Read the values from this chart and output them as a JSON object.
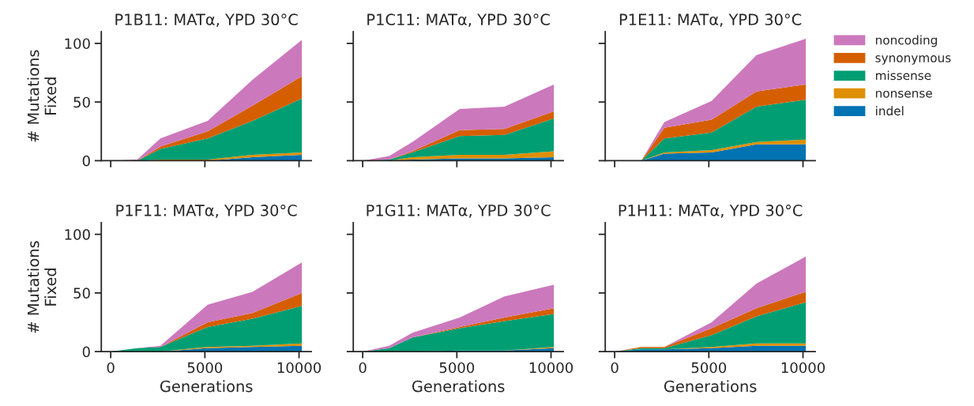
{
  "chart_data": [
    {
      "type": "area",
      "stacked": true,
      "title": "P1B11: MATα, YPD 30°C",
      "ylabel": "# Mutations\nFixed",
      "x": [
        0,
        1410,
        2640,
        5150,
        7530,
        10150
      ],
      "xlim": [
        -500,
        10650
      ],
      "ylim": [
        0,
        110
      ],
      "yticks": [
        0,
        50,
        100
      ],
      "xticks": [
        0,
        5000,
        10000
      ],
      "tick_labels": "y",
      "legend": "right",
      "series": [
        {
          "name": "indel",
          "color": "#0173b2",
          "values": [
            0,
            0,
            0,
            0,
            3,
            5
          ]
        },
        {
          "name": "nonsense",
          "color": "#de8f05",
          "values": [
            0,
            0,
            1,
            1,
            2,
            2
          ]
        },
        {
          "name": "missense",
          "color": "#029e73",
          "values": [
            0,
            0,
            9,
            18,
            29,
            46
          ]
        },
        {
          "name": "synonymous",
          "color": "#d55e00",
          "values": [
            0,
            0,
            2,
            6,
            13,
            19
          ]
        },
        {
          "name": "noncoding",
          "color": "#cc78bc",
          "values": [
            0,
            1,
            7,
            9,
            22,
            31
          ]
        }
      ]
    },
    {
      "type": "area",
      "stacked": true,
      "title": "P1C11: MATα, YPD 30°C",
      "x": [
        0,
        1410,
        2640,
        5150,
        7530,
        10150
      ],
      "xlim": [
        -500,
        10650
      ],
      "ylim": [
        0,
        110
      ],
      "yticks": [
        0,
        50,
        100
      ],
      "xticks": [
        0,
        5000,
        10000
      ],
      "tick_labels": false,
      "series": [
        {
          "color": "#0173b2",
          "values": [
            0,
            0,
            1,
            2,
            2,
            3
          ]
        },
        {
          "color": "#de8f05",
          "values": [
            0,
            0,
            2,
            3,
            3,
            5
          ]
        },
        {
          "color": "#029e73",
          "values": [
            0,
            1,
            4,
            16,
            17,
            28
          ]
        },
        {
          "color": "#d55e00",
          "values": [
            0,
            0,
            1,
            5,
            5,
            6
          ]
        },
        {
          "color": "#cc78bc",
          "values": [
            0,
            3,
            8,
            18,
            19,
            23
          ]
        }
      ]
    },
    {
      "type": "area",
      "stacked": true,
      "title": "P1E11: MATα, YPD 30°C",
      "x": [
        0,
        1410,
        2640,
        5150,
        7530,
        10150
      ],
      "xlim": [
        -500,
        10650
      ],
      "ylim": [
        0,
        110
      ],
      "yticks": [
        0,
        50,
        100
      ],
      "xticks": [
        0,
        5000,
        10000
      ],
      "tick_labels": false,
      "series": [
        {
          "color": "#0173b2",
          "values": [
            0,
            0,
            6,
            7,
            14,
            14
          ]
        },
        {
          "color": "#de8f05",
          "values": [
            0,
            0,
            1,
            2,
            2,
            4
          ]
        },
        {
          "color": "#029e73",
          "values": [
            0,
            0,
            12,
            15,
            30,
            34
          ]
        },
        {
          "color": "#d55e00",
          "values": [
            0,
            0,
            9,
            11,
            13,
            13
          ]
        },
        {
          "color": "#cc78bc",
          "values": [
            0,
            0,
            5,
            16,
            31,
            39
          ]
        }
      ]
    },
    {
      "type": "area",
      "stacked": true,
      "title": "P1F11: MATα, YPD 30°C",
      "xlabel": "Generations",
      "ylabel": "# Mutations\nFixed",
      "x": [
        0,
        1410,
        2640,
        5150,
        7530,
        10150
      ],
      "xlim": [
        -500,
        10650
      ],
      "ylim": [
        0,
        110
      ],
      "yticks": [
        0,
        50,
        100
      ],
      "xticks": [
        0,
        5000,
        10000
      ],
      "series": [
        {
          "color": "#0173b2",
          "values": [
            0,
            0,
            0,
            3,
            4,
            5
          ]
        },
        {
          "color": "#de8f05",
          "values": [
            0,
            0,
            0,
            1,
            1,
            2
          ]
        },
        {
          "color": "#029e73",
          "values": [
            0,
            3,
            4,
            17,
            23,
            32
          ]
        },
        {
          "color": "#d55e00",
          "values": [
            0,
            0,
            0,
            4,
            5,
            11
          ]
        },
        {
          "color": "#cc78bc",
          "values": [
            0,
            0,
            1,
            15,
            18,
            26
          ]
        }
      ]
    },
    {
      "type": "area",
      "stacked": true,
      "title": "P1G11: MATα, YPD 30°C",
      "xlabel": "Generations",
      "x": [
        0,
        1410,
        2640,
        5150,
        7530,
        10150
      ],
      "xlim": [
        -500,
        10650
      ],
      "ylim": [
        0,
        110
      ],
      "yticks": [
        0,
        50,
        100
      ],
      "xticks": [
        0,
        5000,
        10000
      ],
      "tick_labels": "x",
      "series": [
        {
          "color": "#0173b2",
          "values": [
            0,
            0,
            0,
            1,
            1,
            3
          ]
        },
        {
          "color": "#de8f05",
          "values": [
            0,
            0,
            0,
            0,
            0,
            1
          ]
        },
        {
          "color": "#029e73",
          "values": [
            0,
            3,
            12,
            19,
            25,
            28
          ]
        },
        {
          "color": "#d55e00",
          "values": [
            0,
            0,
            0,
            1,
            3,
            5
          ]
        },
        {
          "color": "#cc78bc",
          "values": [
            0,
            2,
            4,
            8,
            18,
            20
          ]
        }
      ]
    },
    {
      "type": "area",
      "stacked": true,
      "title": "P1H11: MATα, YPD 30°C",
      "xlabel": "Generations",
      "x": [
        0,
        1410,
        2640,
        5150,
        7530,
        10150
      ],
      "xlim": [
        -500,
        10650
      ],
      "ylim": [
        0,
        110
      ],
      "yticks": [
        0,
        50,
        100
      ],
      "xticks": [
        0,
        5000,
        10000
      ],
      "tick_labels": "x",
      "series": [
        {
          "color": "#0173b2",
          "values": [
            0,
            2,
            2,
            3,
            5,
            5
          ]
        },
        {
          "color": "#de8f05",
          "values": [
            0,
            0,
            0,
            1,
            2,
            2
          ]
        },
        {
          "color": "#029e73",
          "values": [
            0,
            1,
            1,
            10,
            23,
            35
          ]
        },
        {
          "color": "#d55e00",
          "values": [
            0,
            1,
            1,
            6,
            7,
            9
          ]
        },
        {
          "color": "#cc78bc",
          "values": [
            0,
            0,
            0,
            5,
            21,
            30
          ]
        }
      ]
    }
  ]
}
